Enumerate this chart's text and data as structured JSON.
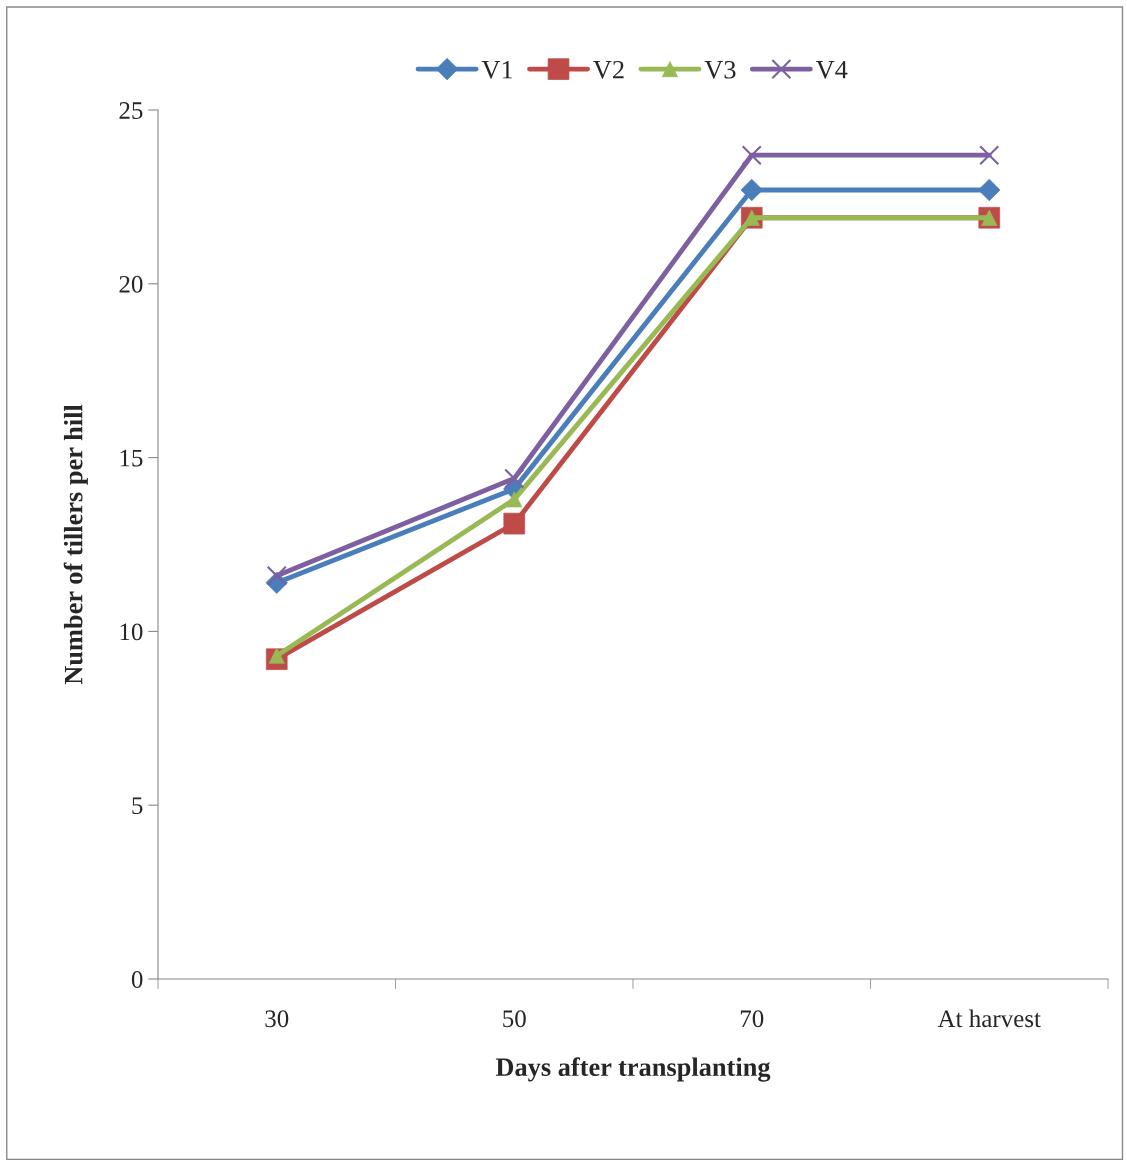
{
  "chart_data": {
    "type": "line",
    "xlabel": "Days after transplanting",
    "ylabel": "Number of tillers per hill",
    "categories": [
      "30",
      "50",
      "70",
      "At harvest"
    ],
    "series": [
      {
        "name": "V1",
        "color": "#4a7ebb",
        "marker": "diamond",
        "values": [
          11.4,
          14.1,
          22.7,
          22.7
        ]
      },
      {
        "name": "V2",
        "color": "#be4b48",
        "marker": "square",
        "values": [
          9.2,
          13.1,
          21.9,
          21.9
        ]
      },
      {
        "name": "V3",
        "color": "#98b954",
        "marker": "triangle",
        "values": [
          9.3,
          13.8,
          21.9,
          21.9
        ]
      },
      {
        "name": "V4",
        "color": "#7d60a0",
        "marker": "cross",
        "values": [
          11.6,
          14.4,
          23.7,
          23.7
        ]
      }
    ],
    "ylim": [
      0,
      25
    ],
    "yticks": [
      0,
      5,
      10,
      15,
      20,
      25
    ],
    "grid": false,
    "legend": "top",
    "line_style": "solid"
  }
}
